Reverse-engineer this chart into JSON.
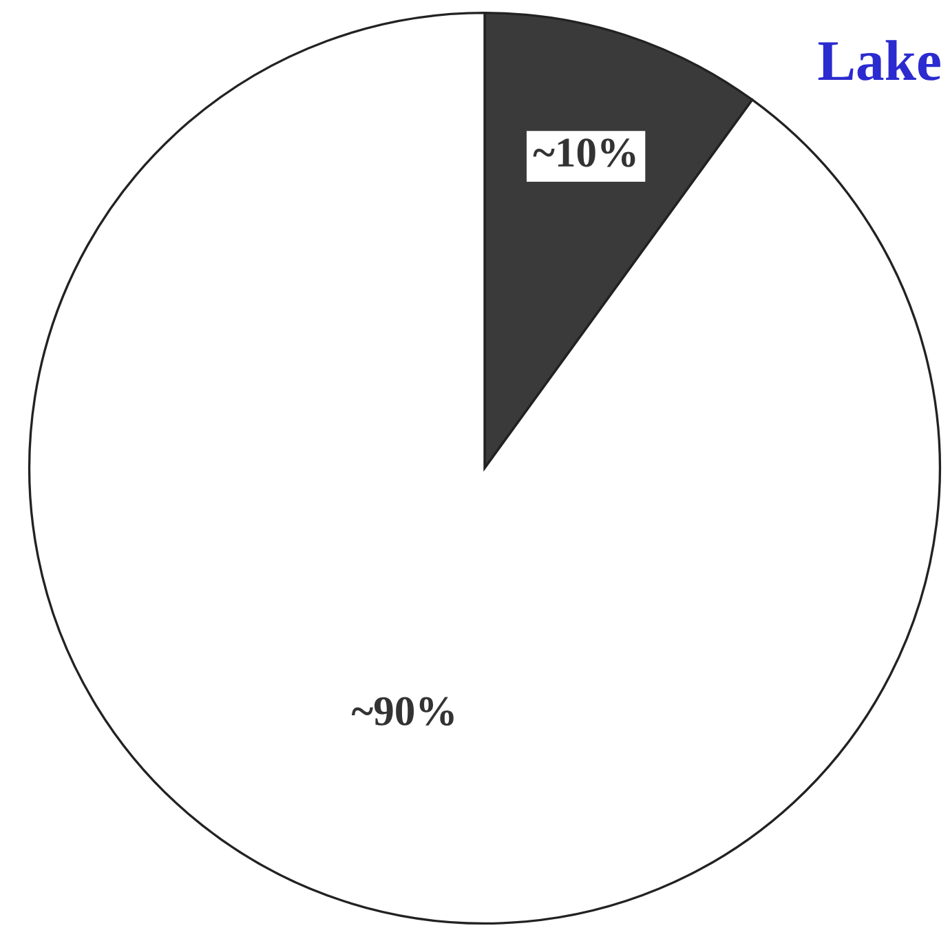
{
  "chart_data": {
    "type": "pie",
    "title": "Lake",
    "categories": [
      null,
      null
    ],
    "values": [
      10,
      90
    ],
    "value_labels": [
      "~10%",
      "~90%"
    ],
    "colors": [
      "#3a3a3a",
      "#ffffff"
    ]
  }
}
